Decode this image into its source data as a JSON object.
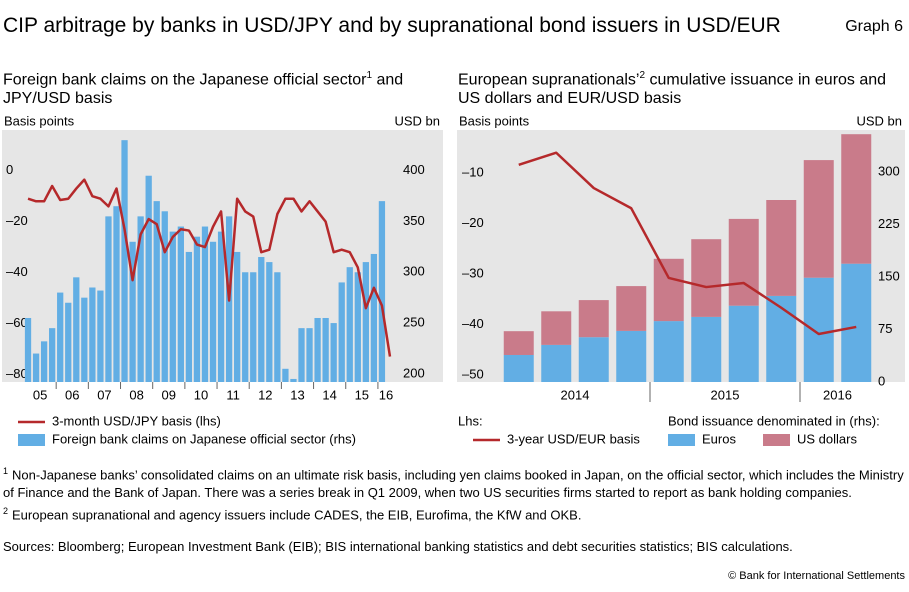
{
  "header": {
    "title": "CIP arbitrage by banks in USD/JPY and by supranational bond issuers in USD/EUR",
    "graph_label": "Graph 6"
  },
  "chart_data": [
    {
      "type": "combo",
      "title": "Foreign bank claims on the Japanese official sector",
      "title_note": "1",
      "title_end": "and JPY/USD basis",
      "y_label": "Basis points",
      "y2_label": "USD bn",
      "categories": [
        null,
        "05",
        null,
        null,
        null,
        "06",
        null,
        null,
        null,
        "07",
        null,
        null,
        null,
        "08",
        null,
        null,
        null,
        "09",
        null,
        null,
        null,
        "10",
        null,
        null,
        null,
        "11",
        null,
        null,
        null,
        "12",
        null,
        null,
        null,
        "13",
        null,
        null,
        null,
        "14",
        null,
        null,
        null,
        "15",
        null,
        null,
        null,
        "16"
      ],
      "ylim": [
        -83,
        16
      ],
      "yticks": [
        {
          "value": -80,
          "label": "–80"
        },
        {
          "value": -60,
          "label": "–60"
        },
        {
          "value": -40,
          "label": "–40"
        },
        {
          "value": -20,
          "label": "–20"
        },
        0
      ],
      "y2lim": [
        192,
        440
      ],
      "y2ticks": [
        200,
        250,
        300,
        350,
        400
      ],
      "series": [
        {
          "name": "Foreign bank claims on Japanese official sector (rhs)",
          "type": "bar",
          "axis": "y2",
          "color": "#62aee4",
          "values": [
            255,
            220,
            232,
            245,
            280,
            270,
            295,
            275,
            285,
            282,
            355,
            365,
            430,
            330,
            355,
            395,
            370,
            360,
            340,
            345,
            320,
            335,
            345,
            330,
            340,
            355,
            320,
            300,
            300,
            315,
            310,
            300,
            205,
            195,
            245,
            245,
            255,
            255,
            250,
            290,
            305,
            300,
            310,
            318,
            370,
            null
          ]
        },
        {
          "name": "3-month USD/JPY basis (lhs)",
          "type": "line",
          "axis": "y",
          "color": "#b5292b",
          "values": [
            -11,
            -12,
            -12,
            -6,
            -11.5,
            -11,
            -7,
            -3.5,
            -10,
            -11,
            -14,
            -7,
            -23,
            -43,
            -25,
            -19,
            -21,
            -32,
            -26,
            -23,
            -23.5,
            -29,
            -30,
            -22,
            -16,
            -51,
            -11,
            -16,
            -18,
            -32,
            -31,
            -17,
            -11,
            -11,
            -16,
            -12,
            -16,
            -20,
            -32,
            -31,
            -32,
            -38,
            -54,
            -46,
            -53,
            -73
          ]
        }
      ]
    },
    {
      "type": "combo",
      "title": "European supranationals’",
      "title_note": "2",
      "title_end": "cumulative issuance in euros and US dollars and EUR/USD basis",
      "y_label": "Basis points",
      "y2_label": "USD bn",
      "categories": [
        null,
        "2014",
        null,
        null,
        null,
        "2015",
        null,
        null,
        null,
        "2016"
      ],
      "ylim": [
        -51.4,
        -1.5
      ],
      "yticks": [
        {
          "value": -50,
          "label": "–50"
        },
        {
          "value": -40,
          "label": "–40"
        },
        {
          "value": -30,
          "label": "–30"
        },
        {
          "value": -20,
          "label": "–20"
        },
        {
          "value": -10,
          "label": "–10"
        }
      ],
      "y2lim": [
        0,
        360
      ],
      "y2ticks": [
        0,
        75,
        150,
        225,
        300
      ],
      "stacked": true,
      "legend_titles": [
        "Lhs:",
        "Bond issuance denominated in (rhs):"
      ],
      "series": [
        {
          "name": "Euros",
          "type": "bar",
          "axis": "y2",
          "color": "#62aee4",
          "values": [
            38.6,
            53,
            64,
            73,
            87,
            93,
            109,
            123,
            149,
            169
          ]
        },
        {
          "name": "US dollars",
          "type": "bar",
          "axis": "y2",
          "color": "#c97b8a",
          "values": [
            34,
            48,
            53,
            64,
            89,
            111,
            124,
            137,
            168,
            185
          ]
        },
        {
          "name": "3-year USD/EUR basis",
          "type": "line",
          "axis": "y",
          "color": "#b5292b",
          "values": [
            -8.4,
            -6,
            -13,
            -17,
            -30.8,
            -32.6,
            -31.8,
            -36.7,
            -41.9,
            -40.5
          ]
        }
      ]
    }
  ],
  "footnotes": [
    {
      "mark": "1",
      "text": "Non-Japanese banks’ consolidated claims on an ultimate risk basis, including yen claims booked in Japan, on the official sector, which includes the Ministry of Finance and the Bank of Japan. There was a series break in Q1 2009, when two US securities firms started to report as bank holding companies."
    },
    {
      "mark": "2",
      "text": "European supranational and agency issuers include CADES, the EIB, Eurofima, the KfW and OKB."
    }
  ],
  "sources": "Sources: Bloomberg; European Investment Bank (EIB); BIS international banking statistics and debt securities statistics; BIS calculations.",
  "copyright": "© Bank for International Settlements"
}
